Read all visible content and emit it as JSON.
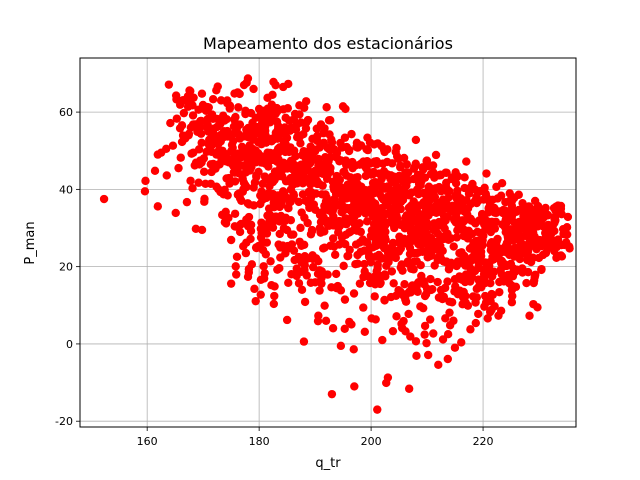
{
  "chart_data": {
    "type": "scatter",
    "title": "Mapeamento dos estacionários",
    "xlabel": "q_tr",
    "ylabel": "P_man",
    "xlim": [
      148,
      236.6
    ],
    "ylim": [
      -21.5,
      74
    ],
    "xticks": [
      160,
      180,
      200,
      220
    ],
    "yticks": [
      -20,
      0,
      20,
      40,
      60
    ],
    "grid": true,
    "marker_color": "#ff0000",
    "series": [
      {
        "points": [
          [
            152.3,
            37.5
          ],
          [
            159.7,
            42.2
          ],
          [
            159.6,
            39.5
          ],
          [
            161.4,
            44.8
          ],
          [
            161.9,
            35.6
          ],
          [
            161.9,
            49.0
          ],
          [
            162.5,
            49.5
          ],
          [
            163.4,
            50.5
          ],
          [
            163.5,
            43.6
          ],
          [
            164.6,
            51.3
          ],
          [
            165.1,
            33.9
          ],
          [
            165.6,
            45.5
          ],
          [
            166.0,
            48.2
          ],
          [
            167.1,
            36.7
          ],
          [
            166.8,
            53.2
          ],
          [
            167.4,
            54.0
          ],
          [
            167.8,
            56.0
          ],
          [
            168.1,
            40.3
          ],
          [
            168.5,
            46.2
          ],
          [
            168.7,
            29.8
          ],
          [
            169.8,
            29.5
          ],
          [
            170.2,
            36.8
          ],
          [
            170.7,
            58.0
          ],
          [
            171.0,
            61.2
          ],
          [
            171.5,
            44.5
          ],
          [
            172.1,
            53.9
          ],
          [
            172.7,
            40.1
          ],
          [
            173.1,
            39.3
          ],
          [
            173.4,
            33.4
          ],
          [
            173.8,
            57.8
          ],
          [
            174.1,
            31.2
          ],
          [
            174.3,
            63.0
          ],
          [
            175.0,
            26.9
          ],
          [
            175.0,
            15.6
          ],
          [
            175.6,
            64.8
          ],
          [
            176.2,
            38.6
          ],
          [
            176.6,
            29.0
          ],
          [
            177.3,
            67.0
          ],
          [
            177.7,
            26.2
          ],
          [
            178.0,
            68.7
          ],
          [
            178.2,
            36.1
          ],
          [
            178.7,
            20.6
          ],
          [
            179.0,
            66.0
          ],
          [
            179.5,
            43.6
          ],
          [
            180.0,
            60.8
          ],
          [
            180.2,
            38.4
          ],
          [
            180.6,
            26.3
          ],
          [
            181.0,
            18.3
          ],
          [
            181.5,
            63.7
          ],
          [
            181.9,
            30.5
          ],
          [
            182.2,
            15.2
          ],
          [
            182.7,
            12.4
          ],
          [
            183.2,
            57.5
          ],
          [
            183.6,
            19.6
          ],
          [
            184.0,
            36.0
          ],
          [
            184.3,
            66.5
          ],
          [
            185.0,
            6.2
          ],
          [
            185.2,
            67.3
          ],
          [
            185.7,
            47.4
          ],
          [
            186.1,
            28.3
          ],
          [
            186.7,
            17.6
          ],
          [
            187.2,
            59.4
          ],
          [
            187.6,
            34.0
          ],
          [
            188.0,
            0.6
          ],
          [
            188.4,
            62.8
          ],
          [
            188.9,
            39.4
          ],
          [
            189.6,
            22.0
          ],
          [
            190.0,
            44.8
          ],
          [
            190.3,
            55.7
          ],
          [
            190.8,
            13.8
          ],
          [
            191.2,
            18.8
          ],
          [
            191.7,
            9.9
          ],
          [
            192.2,
            37.2
          ],
          [
            192.7,
            57.9
          ],
          [
            193.0,
            -13.0
          ],
          [
            193.4,
            25.2
          ],
          [
            193.9,
            49.4
          ],
          [
            194.6,
            -0.5
          ],
          [
            195.1,
            20.2
          ],
          [
            195.6,
            31.0
          ],
          [
            196.1,
            5.7
          ],
          [
            196.5,
            54.3
          ],
          [
            196.9,
            -1.4
          ],
          [
            197.0,
            -11.0
          ],
          [
            197.5,
            38.8
          ],
          [
            198.0,
            15.6
          ],
          [
            198.6,
            9.4
          ],
          [
            198.9,
            46.0
          ],
          [
            199.3,
            26.3
          ],
          [
            199.8,
            52.1
          ],
          [
            200.1,
            6.6
          ],
          [
            200.6,
            17.4
          ],
          [
            201.1,
            -17.0
          ],
          [
            201.5,
            34.7
          ],
          [
            202.0,
            1.0
          ],
          [
            202.3,
            44.7
          ],
          [
            202.7,
            -10.1
          ],
          [
            203.0,
            -8.7
          ],
          [
            203.4,
            22.5
          ],
          [
            203.9,
            3.3
          ],
          [
            204.4,
            49.7
          ],
          [
            204.9,
            13.9
          ],
          [
            205.3,
            30.8
          ],
          [
            205.8,
            5.9
          ],
          [
            206.2,
            41.0
          ],
          [
            206.8,
            -11.6
          ],
          [
            207.0,
            1.9
          ],
          [
            207.6,
            19.3
          ],
          [
            208.0,
            52.8
          ],
          [
            208.4,
            28.4
          ],
          [
            208.8,
            9.7
          ],
          [
            209.2,
            45.7
          ],
          [
            209.9,
            0.2
          ],
          [
            210.3,
            34.1
          ],
          [
            210.6,
            16.8
          ],
          [
            211.1,
            2.7
          ],
          [
            211.6,
            48.9
          ],
          [
            212.0,
            -5.4
          ],
          [
            212.4,
            27.2
          ],
          [
            213.0,
            12.2
          ],
          [
            213.4,
            40.6
          ],
          [
            213.7,
            -3.9
          ],
          [
            214.3,
            21.0
          ],
          [
            214.7,
            6.0
          ],
          [
            215.1,
            44.4
          ],
          [
            215.6,
            31.3
          ],
          [
            216.1,
            0.4
          ],
          [
            216.6,
            17.1
          ],
          [
            217.0,
            47.2
          ],
          [
            217.3,
            9.9
          ],
          [
            217.8,
            36.2
          ],
          [
            218.3,
            24.6
          ],
          [
            218.7,
            5.4
          ],
          [
            219.2,
            39.5
          ],
          [
            219.7,
            14.7
          ],
          [
            220.2,
            30.9
          ],
          [
            220.6,
            44.1
          ],
          [
            221.1,
            20.2
          ],
          [
            221.5,
            8.8
          ],
          [
            222.0,
            35.2
          ],
          [
            222.4,
            25.3
          ],
          [
            222.9,
            13.4
          ],
          [
            223.4,
            41.6
          ],
          [
            223.9,
            20.6
          ],
          [
            224.3,
            31.6
          ],
          [
            224.7,
            15.7
          ],
          [
            225.3,
            37.4
          ],
          [
            225.6,
            22.6
          ],
          [
            226.1,
            19.2
          ],
          [
            226.5,
            29.8
          ],
          [
            227.0,
            35.0
          ],
          [
            227.4,
            25.4
          ],
          [
            227.9,
            21.7
          ],
          [
            228.5,
            32.9
          ],
          [
            228.7,
            27.7
          ],
          [
            229.3,
            37.0
          ],
          [
            229.7,
            26.2
          ],
          [
            230.3,
            31.6
          ],
          [
            230.6,
            34.5
          ],
          [
            231.1,
            28.7
          ],
          [
            231.6,
            33.3
          ],
          [
            232.0,
            25.6
          ],
          [
            232.5,
            30.8
          ],
          [
            232.9,
            33.0
          ],
          [
            233.4,
            27.0
          ],
          [
            233.9,
            35.0
          ],
          [
            234.3,
            29.7
          ],
          [
            234.8,
            28.6
          ],
          [
            235.0,
            30.2
          ]
        ],
        "band": {
          "rows_x": [
            [
              164,
              236
            ],
            [
              166,
              233
            ],
            [
              168,
              229
            ],
            [
              170,
              226
            ],
            [
              172,
              222
            ],
            [
              174,
              219
            ],
            [
              176,
              216
            ],
            [
              178,
              212
            ]
          ],
          "clusters": [
            {
              "x": [
                168,
                184
              ],
              "y": [
                46,
                68
              ]
            },
            {
              "x": [
                180,
                196
              ],
              "y": [
                38,
                62
              ]
            },
            {
              "x": [
                190,
                206
              ],
              "y": [
                30,
                54
              ]
            },
            {
              "x": [
                200,
                214
              ],
              "y": [
                20,
                48
              ]
            },
            {
              "x": [
                208,
                222
              ],
              "y": [
                12,
                40
              ]
            },
            {
              "x": [
                216,
                230
              ],
              "y": [
                6,
                32
              ]
            },
            {
              "x": [
                224,
                235
              ],
              "y": [
                22,
                36
              ]
            }
          ]
        }
      }
    ]
  }
}
